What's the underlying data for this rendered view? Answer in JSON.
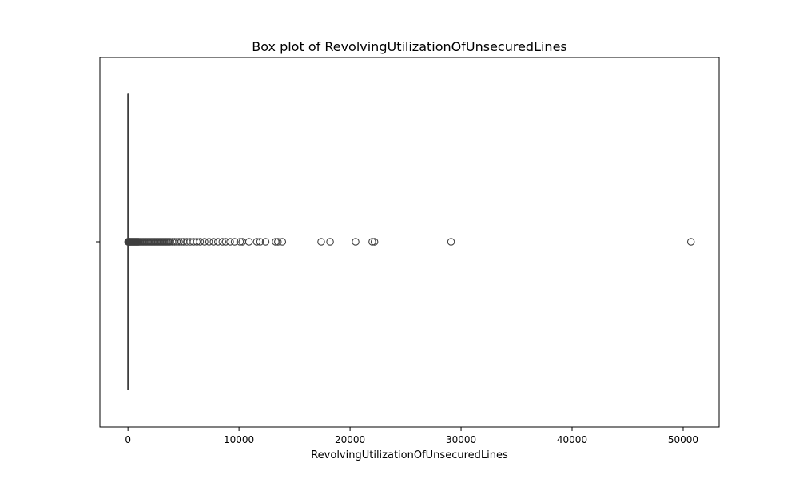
{
  "chart_data": {
    "type": "box",
    "title": "Box plot of RevolvingUtilizationOfUnsecuredLines",
    "xlabel": "RevolvingUtilizationOfUnsecuredLines",
    "ylabel": "",
    "xlim": [
      -2530,
      53240
    ],
    "xticks": [
      0,
      10000,
      20000,
      30000,
      40000,
      50000
    ],
    "orientation": "horizontal",
    "grid": false,
    "box": {
      "q1": 0.03,
      "median": 0.15,
      "q3": 0.56,
      "whisker_low": 0,
      "whisker_high": 1.35
    },
    "outliers": [
      10,
      40,
      80,
      120,
      160,
      200,
      250,
      300,
      350,
      400,
      450,
      500,
      550,
      600,
      650,
      700,
      750,
      800,
      850,
      900,
      950,
      1000,
      1100,
      1200,
      1300,
      1400,
      1500,
      1600,
      1700,
      1800,
      1900,
      2000,
      2100,
      2200,
      2300,
      2400,
      2500,
      2600,
      2700,
      2800,
      2900,
      3000,
      3100,
      3200,
      3300,
      3400,
      3500,
      3600,
      3700,
      3800,
      4000,
      4200,
      4400,
      4600,
      4800,
      5000,
      5300,
      5600,
      5900,
      6200,
      6500,
      6900,
      7300,
      7700,
      8100,
      8500,
      8800,
      9200,
      9600,
      10100,
      10300,
      10900,
      11600,
      11900,
      12400,
      13300,
      13500,
      13900,
      17400,
      18200,
      20500,
      22000,
      22200,
      29100,
      50700
    ],
    "colors": {
      "box_line": "#3f3f3f",
      "box_fill": "#1f77b4",
      "outlier_edge": "#3f3f3f",
      "frame": "#000000"
    }
  }
}
